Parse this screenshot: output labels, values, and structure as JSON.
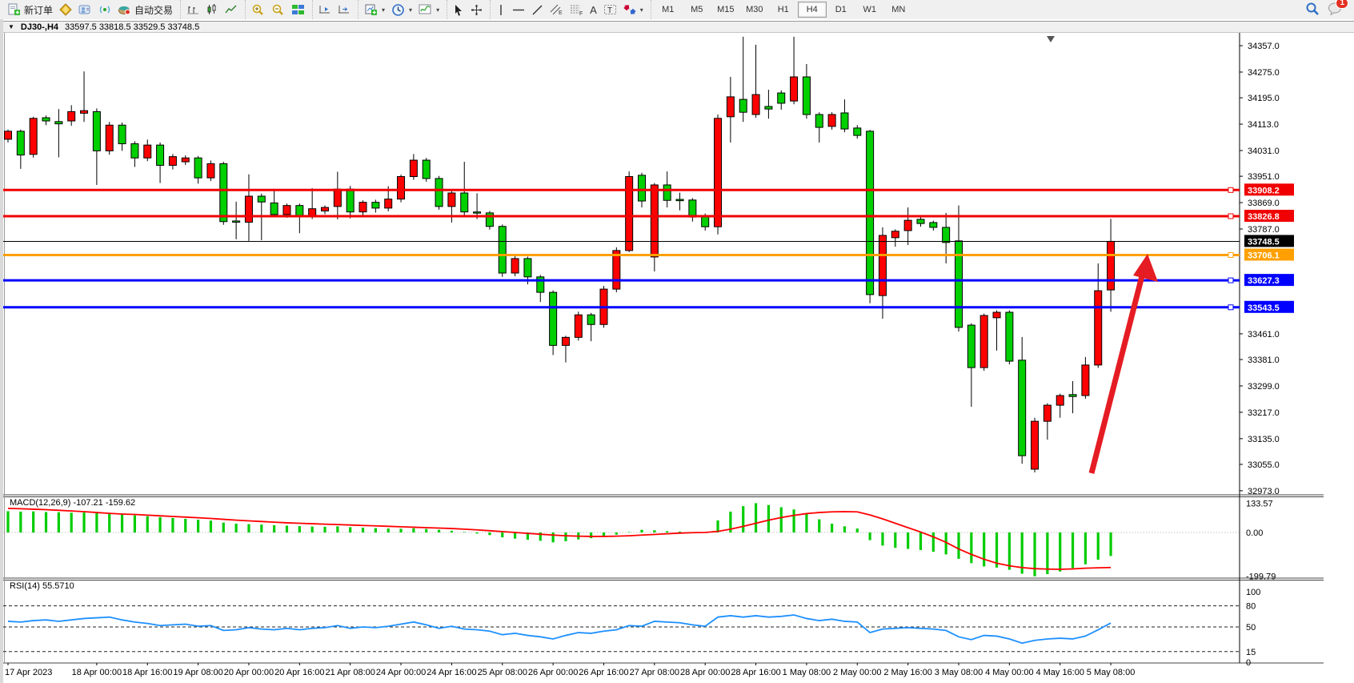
{
  "toolbar": {
    "buttons": {
      "new_order": "新订单",
      "auto_trading": "自动交易",
      "text_label": "A",
      "channel_letter": "E",
      "fibo_letter": "F",
      "textbox_letter": "T"
    },
    "timeframes": [
      "M1",
      "M5",
      "M15",
      "M30",
      "H1",
      "H4",
      "D1",
      "W1",
      "MN"
    ],
    "active_timeframe": "H4",
    "notification_count": "1"
  },
  "chart": {
    "title": {
      "collapse_icon": "▼",
      "symbol": "DJ30-,H4",
      "ohlc": "33597.5 33818.5 33529.5 33748.5"
    },
    "price_axis_ticks": [
      "34357.0",
      "34275.0",
      "34195.0",
      "34113.0",
      "34031.0",
      "33951.0",
      "33869.0",
      "33787.0",
      "33461.0",
      "33381.0",
      "33299.0",
      "33217.0",
      "33135.0",
      "33055.0",
      "32973.0"
    ],
    "price_axis_tick_values": [
      34357,
      34275,
      34195,
      34113,
      34031,
      33951,
      33869,
      33787,
      33461,
      33381,
      33299,
      33217,
      33135,
      33055,
      32973
    ],
    "time_labels": [
      {
        "text": "17 Apr 2023",
        "i": 0
      },
      {
        "text": "18 Apr 00:00",
        "i": 7
      },
      {
        "text": "18 Apr 16:00",
        "i": 11
      },
      {
        "text": "19 Apr 08:00",
        "i": 15
      },
      {
        "text": "20 Apr 00:00",
        "i": 19
      },
      {
        "text": "20 Apr 16:00",
        "i": 23
      },
      {
        "text": "21 Apr 08:00",
        "i": 27
      },
      {
        "text": "24 Apr 00:00",
        "i": 31
      },
      {
        "text": "24 Apr 16:00",
        "i": 35
      },
      {
        "text": "25 Apr 08:00",
        "i": 39
      },
      {
        "text": "26 Apr 00:00",
        "i": 43
      },
      {
        "text": "26 Apr 16:00",
        "i": 47
      },
      {
        "text": "27 Apr 08:00",
        "i": 51
      },
      {
        "text": "28 Apr 00:00",
        "i": 55
      },
      {
        "text": "28 Apr 16:00",
        "i": 59
      },
      {
        "text": "1 May 08:00",
        "i": 63
      },
      {
        "text": "2 May 00:00",
        "i": 67
      },
      {
        "text": "2 May 16:00",
        "i": 71
      },
      {
        "text": "3 May 08:00",
        "i": 75
      },
      {
        "text": "4 May 00:00",
        "i": 79
      },
      {
        "text": "4 May 16:00",
        "i": 83
      },
      {
        "text": "5 May 08:00",
        "i": 87
      }
    ],
    "hlines": [
      {
        "price": 33908.2,
        "label": "33908.2",
        "color": "#f00000",
        "width": 3,
        "handle": true
      },
      {
        "price": 33826.8,
        "label": "33826.8",
        "color": "#f00000",
        "width": 3,
        "handle": true
      },
      {
        "price": 33748.5,
        "label": "33748.5",
        "color": "#000000",
        "width": 1,
        "handle": false
      },
      {
        "price": 33706.1,
        "label": "33706.1",
        "color": "#ffa000",
        "width": 3,
        "handle": true
      },
      {
        "price": 33627.3,
        "label": "33627.3",
        "color": "#0000ff",
        "width": 3,
        "handle": true
      },
      {
        "price": 33543.5,
        "label": "33543.5",
        "color": "#0000ff",
        "width": 3,
        "handle": true
      }
    ]
  },
  "chart_data": {
    "type": "candlestick+indicators",
    "symbol": "DJ30-",
    "period": "H4",
    "current_ohlc": {
      "open": 33597.5,
      "high": 33818.5,
      "low": 33529.5,
      "close": 33748.5
    },
    "candles": [
      [
        34066,
        34096,
        34056,
        34091
      ],
      [
        34091,
        34096,
        33974,
        34017
      ],
      [
        34019,
        34136,
        34009,
        34131
      ],
      [
        34133,
        34140,
        34110,
        34123
      ],
      [
        34121,
        34160,
        34010,
        34114
      ],
      [
        34123,
        34172,
        34108,
        34152
      ],
      [
        34147,
        34277,
        34120,
        34155
      ],
      [
        34152,
        34162,
        33924,
        34030
      ],
      [
        34030,
        34120,
        34018,
        34110
      ],
      [
        34110,
        34118,
        34030,
        34052
      ],
      [
        34052,
        34060,
        33980,
        34008
      ],
      [
        34008,
        34065,
        33998,
        34048
      ],
      [
        34048,
        34056,
        33930,
        33985
      ],
      [
        33985,
        34020,
        33972,
        34012
      ],
      [
        33996,
        34016,
        33986,
        34008
      ],
      [
        34008,
        34014,
        33928,
        33946
      ],
      [
        33946,
        34000,
        33936,
        33990
      ],
      [
        33990,
        33996,
        33800,
        33810
      ],
      [
        33812,
        33872,
        33755,
        33808
      ],
      [
        33808,
        33957,
        33750,
        33889
      ],
      [
        33889,
        33897,
        33752,
        33871
      ],
      [
        33868,
        33908,
        33826,
        33832
      ],
      [
        33832,
        33866,
        33822,
        33860
      ],
      [
        33860,
        33866,
        33774,
        33828
      ],
      [
        33828,
        33914,
        33818,
        33850
      ],
      [
        33843,
        33860,
        33833,
        33854
      ],
      [
        33857,
        33965,
        33817,
        33911
      ],
      [
        33911,
        33921,
        33820,
        33840
      ],
      [
        33840,
        33876,
        33830,
        33870
      ],
      [
        33870,
        33878,
        33838,
        33852
      ],
      [
        33852,
        33920,
        33842,
        33880
      ],
      [
        33880,
        33956,
        33870,
        33950
      ],
      [
        33950,
        34020,
        33940,
        34001
      ],
      [
        34001,
        34008,
        33934,
        33944
      ],
      [
        33944,
        33952,
        33847,
        33857
      ],
      [
        33857,
        33905,
        33807,
        33899
      ],
      [
        33899,
        33996,
        33830,
        33840
      ],
      [
        33840,
        33898,
        33818,
        33837
      ],
      [
        33837,
        33843,
        33785,
        33795
      ],
      [
        33795,
        33801,
        33638,
        33650
      ],
      [
        33650,
        33705,
        33640,
        33695
      ],
      [
        33695,
        33701,
        33615,
        33638
      ],
      [
        33638,
        33644,
        33560,
        33590
      ],
      [
        33590,
        33596,
        33395,
        33425
      ],
      [
        33425,
        33455,
        33372,
        33450
      ],
      [
        33450,
        33530,
        33440,
        33520
      ],
      [
        33520,
        33526,
        33438,
        33490
      ],
      [
        33490,
        33610,
        33480,
        33600
      ],
      [
        33600,
        33730,
        33590,
        33720
      ],
      [
        33720,
        33966,
        33715,
        33950
      ],
      [
        33954,
        33962,
        33854,
        33874
      ],
      [
        33700,
        33930,
        33655,
        33924
      ],
      [
        33924,
        33966,
        33854,
        33876
      ],
      [
        33879,
        33900,
        33845,
        33875
      ],
      [
        33877,
        33883,
        33810,
        33824
      ],
      [
        33829,
        33835,
        33782,
        33794
      ],
      [
        33794,
        34143,
        33770,
        34131
      ],
      [
        34136,
        34260,
        34056,
        34198
      ],
      [
        34190,
        34385,
        34120,
        34150
      ],
      [
        34143,
        34360,
        34133,
        34205
      ],
      [
        34168,
        34220,
        34130,
        34160
      ],
      [
        34210,
        34218,
        34158,
        34178
      ],
      [
        34185,
        34385,
        34175,
        34260
      ],
      [
        34260,
        34300,
        34130,
        34143
      ],
      [
        34143,
        34150,
        34056,
        34103
      ],
      [
        34106,
        34150,
        34096,
        34143
      ],
      [
        34148,
        34190,
        34088,
        34098
      ],
      [
        34101,
        34110,
        34068,
        34078
      ],
      [
        34091,
        34095,
        33556,
        33583
      ],
      [
        33580,
        33792,
        33508,
        33767
      ],
      [
        33760,
        33786,
        33732,
        33780
      ],
      [
        33782,
        33854,
        33737,
        33814
      ],
      [
        33817,
        33824,
        33794,
        33804
      ],
      [
        33807,
        33813,
        33782,
        33792
      ],
      [
        33792,
        33837,
        33680,
        33745
      ],
      [
        33750,
        33860,
        33468,
        33481
      ],
      [
        33488,
        33494,
        33234,
        33356
      ],
      [
        33356,
        33524,
        33346,
        33518
      ],
      [
        33511,
        33534,
        33409,
        33528
      ],
      [
        33528,
        33534,
        33366,
        33376
      ],
      [
        33379,
        33451,
        33057,
        33082
      ],
      [
        33040,
        33200,
        33030,
        33189
      ],
      [
        33189,
        33245,
        33132,
        33239
      ],
      [
        33239,
        33275,
        33200,
        33269
      ],
      [
        33272,
        33314,
        33214,
        33266
      ],
      [
        33269,
        33389,
        33259,
        33364
      ],
      [
        33364,
        33680,
        33355,
        33595
      ],
      [
        33597.5,
        33818.5,
        33529.5,
        33748.5
      ]
    ],
    "macd": {
      "title": "MACD(12,26,9)",
      "value_main": "-107.21",
      "value_signal": "-159.62",
      "axis_labels": [
        "133.57",
        "0.00",
        "-199.79"
      ],
      "axis_values": [
        133.57,
        0.0,
        -199.79
      ],
      "histogram": [
        97,
        95,
        96,
        93,
        92,
        90,
        91,
        88,
        86,
        82,
        78,
        74,
        70,
        66,
        62,
        58,
        54,
        45,
        40,
        38,
        36,
        33,
        31,
        29,
        27,
        26,
        28,
        24,
        22,
        20,
        18,
        17,
        19,
        16,
        12,
        8,
        2,
        -5,
        -12,
        -22,
        -28,
        -33,
        -38,
        -45,
        -40,
        -32,
        -26,
        -18,
        -10,
        2,
        12,
        10,
        6,
        4,
        2,
        0,
        55,
        95,
        120,
        133.57,
        125,
        115,
        105,
        85,
        60,
        40,
        28,
        18,
        -35,
        -60,
        -70,
        -75,
        -80,
        -88,
        -100,
        -120,
        -140,
        -155,
        -160,
        -170,
        -188,
        -199.79,
        -190,
        -178,
        -162,
        -145,
        -124,
        -107.21
      ],
      "signal": [
        110,
        108,
        106,
        104,
        101,
        98,
        95,
        91,
        87,
        84,
        82,
        79,
        76,
        73,
        70,
        67,
        64,
        60,
        56,
        53,
        50,
        47,
        44,
        42,
        40,
        38,
        36,
        34,
        32,
        30,
        28,
        26,
        24,
        22,
        20,
        18,
        15,
        12,
        8,
        4,
        0,
        -4,
        -8,
        -12,
        -15,
        -17,
        -18,
        -18,
        -17,
        -15,
        -12,
        -9,
        -6,
        -3,
        -1,
        0,
        5,
        15,
        28,
        42,
        56,
        68,
        78,
        86,
        91,
        94,
        95,
        94,
        80,
        62,
        42,
        22,
        2,
        -20,
        -45,
        -75,
        -100,
        -122,
        -140,
        -152,
        -160,
        -165,
        -167,
        -168,
        -166,
        -163,
        -161,
        -159.62
      ]
    },
    "rsi": {
      "title": "RSI(14)",
      "value": "55.5710",
      "axis_labels": [
        "100",
        "80",
        "50",
        "15",
        "0"
      ],
      "axis_values": [
        100,
        80,
        50,
        15,
        0
      ],
      "dashed_levels": [
        80,
        50,
        15
      ],
      "values": [
        58,
        57,
        59,
        60,
        58,
        60,
        62,
        63,
        64,
        60,
        57,
        55,
        52,
        53,
        54,
        51,
        52,
        45,
        46,
        49,
        47,
        46,
        48,
        46,
        48,
        49,
        52,
        48,
        50,
        49,
        51,
        54,
        57,
        53,
        48,
        51,
        47,
        46,
        44,
        39,
        41,
        38,
        36,
        33,
        38,
        42,
        41,
        44,
        46,
        52,
        51,
        58,
        57,
        56,
        53,
        51,
        64,
        66,
        64,
        66,
        64,
        65,
        67,
        62,
        59,
        61,
        58,
        57,
        42,
        47,
        48,
        49,
        48,
        47,
        45,
        36,
        32,
        38,
        37,
        33,
        27,
        31,
        33,
        34,
        33,
        37,
        46,
        55.57
      ]
    }
  },
  "colors": {
    "bull": "#ff0000",
    "bear": "#00cf00",
    "candle_outline": "#000000",
    "macd_hist": "#00cc00",
    "macd_signal": "#ff0000",
    "rsi_line": "#1e90ff",
    "arrow": "#e51c23",
    "axis_text": "#000000"
  }
}
